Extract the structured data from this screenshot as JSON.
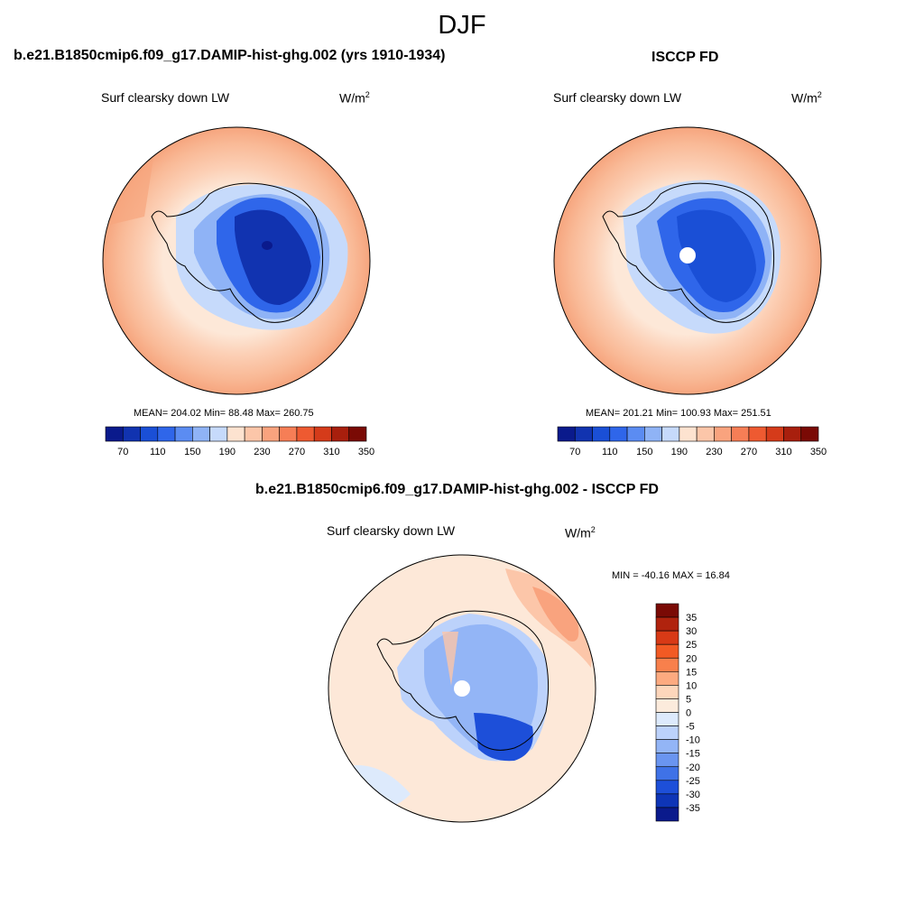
{
  "season": "DJF",
  "panels": [
    {
      "title": "b.e21.B1850cmip6.f09_g17.DAMIP-hist-ghg.002 (yrs 1910-1934)",
      "variable": "Surf clearsky down LW",
      "units_base": "W/m",
      "units_exp": "2",
      "stats": "MEAN= 204.02  Min=  88.48  Max= 260.75"
    },
    {
      "title": "ISCCP FD",
      "variable": "Surf clearsky down LW",
      "units_base": "W/m",
      "units_exp": "2",
      "stats": "MEAN= 201.21  Min= 100.93  Max= 251.51"
    },
    {
      "title": "b.e21.B1850cmip6.f09_g17.DAMIP-hist-ghg.002 - ISCCP FD",
      "variable": "Surf clearsky down LW",
      "units_base": "W/m",
      "units_exp": "2",
      "stats": "MIN = -40.16 MAX =  16.84"
    }
  ],
  "colorbar_abs": {
    "colors": [
      "#0a1a8c",
      "#1133b0",
      "#1a4fd6",
      "#2f66ea",
      "#5b8cf2",
      "#8fb3f6",
      "#c6dafb",
      "#fde3d0",
      "#fcc6a9",
      "#f9a37e",
      "#f67e56",
      "#ee5a31",
      "#d53b1a",
      "#a81f0d",
      "#7a0a05"
    ],
    "labels": [
      "70",
      "110",
      "150",
      "190",
      "230",
      "270",
      "310",
      "350"
    ]
  },
  "colorbar_diff": {
    "colors": [
      "#7a0a05",
      "#b0230e",
      "#d83a16",
      "#f25a24",
      "#f8804c",
      "#fcaa80",
      "#fdd6bb",
      "#fcebdc",
      "#ddeafc",
      "#bcd2fb",
      "#93b5f6",
      "#6a95f0",
      "#3f72e7",
      "#1d4fd9",
      "#0e35b7",
      "#0a1a8c"
    ],
    "labels": [
      "35",
      "30",
      "25",
      "20",
      "15",
      "10",
      "5",
      "0",
      "-5",
      "-10",
      "-15",
      "-20",
      "-25",
      "-30",
      "-35"
    ]
  },
  "colors": {
    "land_outline": "#000000",
    "ocean_outer_abs": "#f9c1a3",
    "ocean_inner_abs": "#fde8d8",
    "diff_background": "#fde8d8"
  }
}
